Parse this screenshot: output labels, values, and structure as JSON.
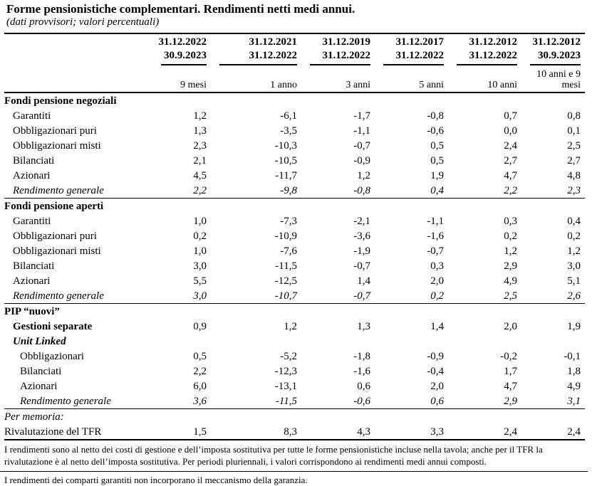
{
  "title": "Forme pensionistiche complementari. Rendimenti netti medi annui.",
  "subtitle": "(dati provvisori; valori percentuali)",
  "columns": [
    {
      "from": "31.12.2022",
      "to": "30.9.2023",
      "period": "9 mesi"
    },
    {
      "from": "31.12.2021",
      "to": "31.12.2022",
      "period": "1 anno"
    },
    {
      "from": "31.12.2019",
      "to": "31.12.2022",
      "period": "3 anni"
    },
    {
      "from": "31.12.2017",
      "to": "31.12.2022",
      "period": "5 anni"
    },
    {
      "from": "31.12.2012",
      "to": "31.12.2022",
      "period": "10 anni"
    },
    {
      "from": "31.12.2012",
      "to": "30.9.2023",
      "period": "10 anni e 9 mesi"
    }
  ],
  "sections": {
    "negoziali": {
      "label": "Fondi pensione negoziali",
      "rows": [
        {
          "label": "Garantiti",
          "values": [
            "1,2",
            "-6,1",
            "-1,7",
            "-0,8",
            "0,7",
            "0,8"
          ]
        },
        {
          "label": "Obbligazionari puri",
          "values": [
            "1,3",
            "-3,5",
            "-1,1",
            "-0,6",
            "0,0",
            "0,1"
          ]
        },
        {
          "label": "Obbligazionari misti",
          "values": [
            "2,3",
            "-10,3",
            "-0,7",
            "0,5",
            "2,4",
            "2,5"
          ]
        },
        {
          "label": "Bilanciati",
          "values": [
            "2,1",
            "-10,5",
            "-0,9",
            "0,5",
            "2,7",
            "2,7"
          ]
        },
        {
          "label": "Azionari",
          "values": [
            "4,5",
            "-11,7",
            "1,2",
            "1,9",
            "4,7",
            "4,8"
          ]
        },
        {
          "label": "Rendimento generale",
          "values": [
            "2,2",
            "-9,8",
            "-0,8",
            "0,4",
            "2,2",
            "2,3"
          ]
        }
      ]
    },
    "aperti": {
      "label": "Fondi pensione aperti",
      "rows": [
        {
          "label": "Garantiti",
          "values": [
            "1,0",
            "-7,3",
            "-2,1",
            "-1,1",
            "0,3",
            "0,4"
          ]
        },
        {
          "label": "Obbligazionari puri",
          "values": [
            "0,2",
            "-10,9",
            "-3,6",
            "-1,6",
            "0,2",
            "0,2"
          ]
        },
        {
          "label": "Obbligazionari misti",
          "values": [
            "1,0",
            "-7,6",
            "-1,9",
            "-0,7",
            "1,2",
            "1,2"
          ]
        },
        {
          "label": "Bilanciati",
          "values": [
            "3,0",
            "-11,5",
            "-0,7",
            "0,3",
            "2,9",
            "3,0"
          ]
        },
        {
          "label": "Azionari",
          "values": [
            "5,5",
            "-12,5",
            "1,4",
            "2,0",
            "4,9",
            "5,1"
          ]
        },
        {
          "label": "Rendimento generale",
          "values": [
            "3,0",
            "-10,7",
            "-0,7",
            "0,2",
            "2,5",
            "2,6"
          ]
        }
      ]
    },
    "pip": {
      "label": "PIP “nuovi”",
      "gestioni": {
        "label": "Gestioni separate",
        "values": [
          "0,9",
          "1,2",
          "1,3",
          "1,4",
          "2,0",
          "1,9"
        ]
      },
      "unit_label": "Unit Linked",
      "rows": [
        {
          "label": "Obbligazionari",
          "values": [
            "0,5",
            "-5,2",
            "-1,8",
            "-0,9",
            "-0,2",
            "-0,1"
          ]
        },
        {
          "label": "Bilanciati",
          "values": [
            "2,2",
            "-12,3",
            "-1,6",
            "-0,4",
            "1,7",
            "1,8"
          ]
        },
        {
          "label": "Azionari",
          "values": [
            "6,0",
            "-13,1",
            "0,6",
            "2,0",
            "4,7",
            "4,9"
          ]
        },
        {
          "label": "Rendimento generale",
          "values": [
            "3,6",
            "-11,5",
            "-0,6",
            "0,6",
            "2,9",
            "3,1"
          ]
        }
      ]
    }
  },
  "memo": {
    "label": "Per memoria:",
    "tfr": {
      "label": "Rivalutazione del TFR",
      "values": [
        "1,5",
        "8,3",
        "4,3",
        "3,3",
        "2,4",
        "2,4"
      ]
    }
  },
  "notes": [
    "I rendimenti sono al netto dei costi di gestione e dell’imposta sostitutiva per tutte le forme pensionistiche incluse nella tavola; anche per il TFR la rivalutazione è al netto dell’imposta sostitutiva. Per periodi pluriennali, i valori corrispondono ai rendimenti medi annui composti.",
    "I rendimenti dei comparti garantiti non incorporano il meccanismo della garanzia."
  ]
}
